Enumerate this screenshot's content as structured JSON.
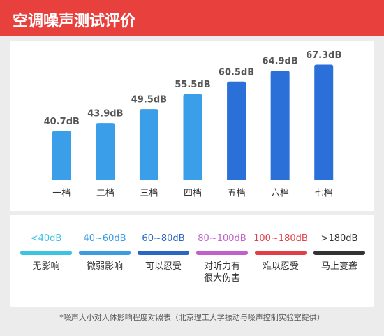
{
  "chart_data": {
    "type": "bar",
    "title": "空调噪声测试评价",
    "categories": [
      "一档",
      "二档",
      "三档",
      "四档",
      "五档",
      "六档",
      "七档"
    ],
    "values": [
      40.7,
      43.9,
      49.5,
      55.5,
      60.5,
      64.9,
      67.3
    ],
    "value_labels": [
      "40.7dB",
      "43.9dB",
      "49.5dB",
      "55.5dB",
      "60.5dB",
      "64.9dB",
      "67.3dB"
    ],
    "colors": [
      "#3a9ee8",
      "#3a9ee8",
      "#3a9ee8",
      "#3a9ee8",
      "#2b6fd8",
      "#2b6fd8",
      "#2b6fd8"
    ],
    "ylim": [
      21,
      68
    ],
    "noise_scale": [
      {
        "label": "<40dB",
        "color": "#3cc3e2",
        "description": "无影响"
      },
      {
        "label": "40~60dB",
        "color": "#3a9ae2",
        "description": "微弱影响"
      },
      {
        "label": "60~80dB",
        "color": "#2a66c4",
        "description": "可以忍受"
      },
      {
        "label": "80~100dB",
        "color": "#c25fcb",
        "description": "对听力有很大伤害"
      },
      {
        "label": "100~180dB",
        "color": "#e23e48",
        "description": "难以忍受"
      },
      {
        "label": ">180dB",
        "color": "#333333",
        "description": "马上变聋"
      }
    ],
    "footnote": "*噪声大小对人体影响程度对照表（北京理工大学振动与噪声控制实验室提供）"
  }
}
